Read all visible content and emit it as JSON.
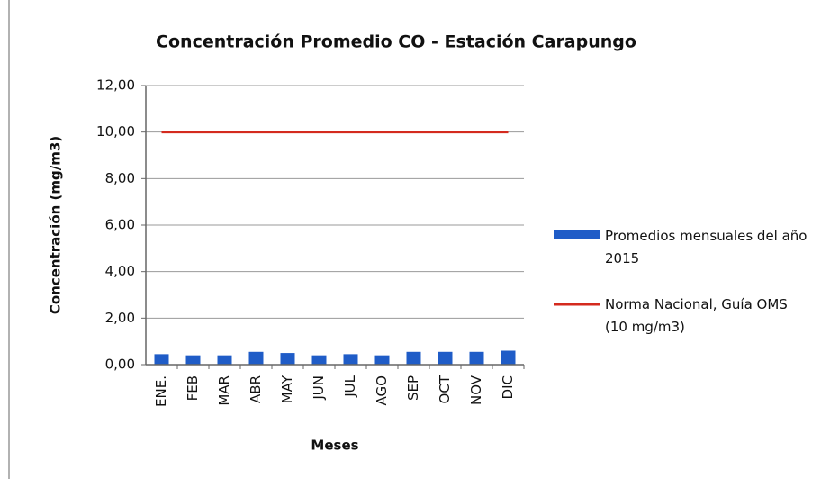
{
  "chart_data": {
    "type": "bar",
    "title": "Concentración Promedio CO - Estación Carapungo",
    "x_label": "Meses",
    "y_label": "Concentración (mg/m3)",
    "categories": [
      "ENE.",
      "FEB",
      "MAR",
      "ABR",
      "MAY",
      "JUN",
      "JUL",
      "AGO",
      "SEP",
      "OCT",
      "NOV",
      "DIC"
    ],
    "series": [
      {
        "name": "Promedios mensuales del año 2015",
        "type": "bar",
        "color": "#1f5cc7",
        "values": [
          0.45,
          0.4,
          0.4,
          0.55,
          0.5,
          0.4,
          0.45,
          0.4,
          0.55,
          0.55,
          0.55,
          0.6
        ]
      },
      {
        "name": "Norma Nacional, Guía OMS (10 mg/m3)",
        "type": "line",
        "color": "#d42a1e",
        "values": [
          10,
          10,
          10,
          10,
          10,
          10,
          10,
          10,
          10,
          10,
          10,
          10
        ]
      }
    ],
    "ylim": [
      0,
      12
    ],
    "yticks": [
      {
        "value": 0,
        "label": "0,00"
      },
      {
        "value": 2,
        "label": "2,00"
      },
      {
        "value": 4,
        "label": "4,00"
      },
      {
        "value": 6,
        "label": "6,00"
      },
      {
        "value": 8,
        "label": "8,00"
      },
      {
        "value": 10,
        "label": "10,00"
      },
      {
        "value": 12,
        "label": "12,00"
      }
    ],
    "grid": true,
    "legend": "right"
  }
}
